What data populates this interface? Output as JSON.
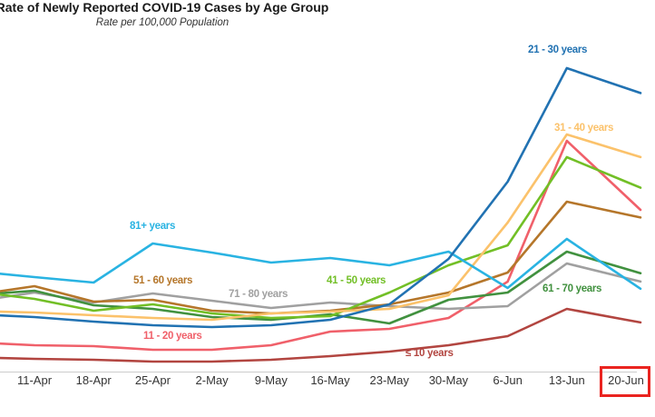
{
  "chart_data": {
    "type": "line",
    "title": "Rate of Newly Reported COVID-19 Cases by Age Group",
    "subtitle": "Rate per 100,000 Population",
    "categories": [
      "11-Apr",
      "18-Apr",
      "25-Apr",
      "2-May",
      "9-May",
      "16-May",
      "23-May",
      "30-May",
      "6-Jun",
      "13-Jun",
      "20-Jun"
    ],
    "highlighted_category": "20-Jun",
    "highlight_color": "#ea2420",
    "ylim": [
      0,
      35
    ],
    "y_axis_visible": false,
    "grid": false,
    "legend_position": "inline-labels",
    "axis_line_color": "#cccccc",
    "tick_color": "#343434",
    "series": [
      {
        "name": "≤ 10 years",
        "color": "#b24540",
        "label_pos": {
          "x": 447,
          "y": 383
        },
        "edge_value": 1.6,
        "values": [
          1.5,
          1.4,
          1.2,
          1.2,
          1.4,
          1.8,
          2.3,
          3.0,
          4.0,
          7.0,
          5.8
        ]
      },
      {
        "name": "11 - 20 years",
        "color": "#f0606a",
        "label_pos": {
          "x": 158,
          "y": 364
        },
        "edge_value": 3.2,
        "values": [
          3.0,
          2.9,
          2.5,
          2.5,
          3.0,
          4.5,
          4.8,
          6.0,
          10.0,
          25.5,
          19.4
        ]
      },
      {
        "name": "71 - 80 years",
        "color": "#a0a0a0",
        "label_pos": {
          "x": 252,
          "y": 318
        },
        "edge_value": 8.2,
        "values": [
          8.8,
          7.7,
          8.7,
          7.9,
          7.1,
          7.7,
          7.3,
          7.0,
          7.3,
          12.0,
          10.4
        ]
      },
      {
        "name": "61 - 70 years",
        "color": "#41913f",
        "label_pos": {
          "x": 598,
          "y": 312
        },
        "edge_value": 8.7,
        "values": [
          9.0,
          7.4,
          7.0,
          6.1,
          5.8,
          6.4,
          5.4,
          8.0,
          8.8,
          13.3,
          11.4
        ]
      },
      {
        "name": "51 - 60 years",
        "color": "#b5762a",
        "label_pos": {
          "x": 147,
          "y": 303
        },
        "edge_value": 8.9,
        "values": [
          9.5,
          7.8,
          8.0,
          6.8,
          6.5,
          6.8,
          7.5,
          8.8,
          11.0,
          18.8,
          17.4
        ]
      },
      {
        "name": "41 - 50 years",
        "color": "#72bf26",
        "label_pos": {
          "x": 360,
          "y": 303
        },
        "edge_value": 8.6,
        "values": [
          8.1,
          6.8,
          7.5,
          6.5,
          6.0,
          6.2,
          8.8,
          11.8,
          14.0,
          23.7,
          21.0
        ]
      },
      {
        "name": "31 - 40 years",
        "color": "#fbc26b",
        "label_pos": {
          "x": 611,
          "y": 135
        },
        "edge_value": 6.7,
        "values": [
          6.6,
          6.3,
          6.0,
          5.8,
          6.5,
          6.7,
          7.0,
          8.5,
          16.5,
          26.2,
          24.2
        ]
      },
      {
        "name": "81+ years",
        "color": "#29b3e2",
        "label_pos": {
          "x": 143,
          "y": 243
        },
        "edge_value": 10.9,
        "values": [
          10.5,
          9.9,
          14.2,
          13.2,
          12.1,
          12.6,
          11.8,
          13.3,
          9.3,
          14.7,
          10.3
        ]
      },
      {
        "name": "21 - 30 years",
        "color": "#2172b2",
        "label_pos": {
          "x": 582,
          "y": 49
        },
        "edge_value": 6.3,
        "values": [
          6.1,
          5.6,
          5.2,
          5.0,
          5.2,
          5.8,
          7.5,
          12.5,
          21.0,
          33.5,
          31.3
        ]
      }
    ]
  }
}
